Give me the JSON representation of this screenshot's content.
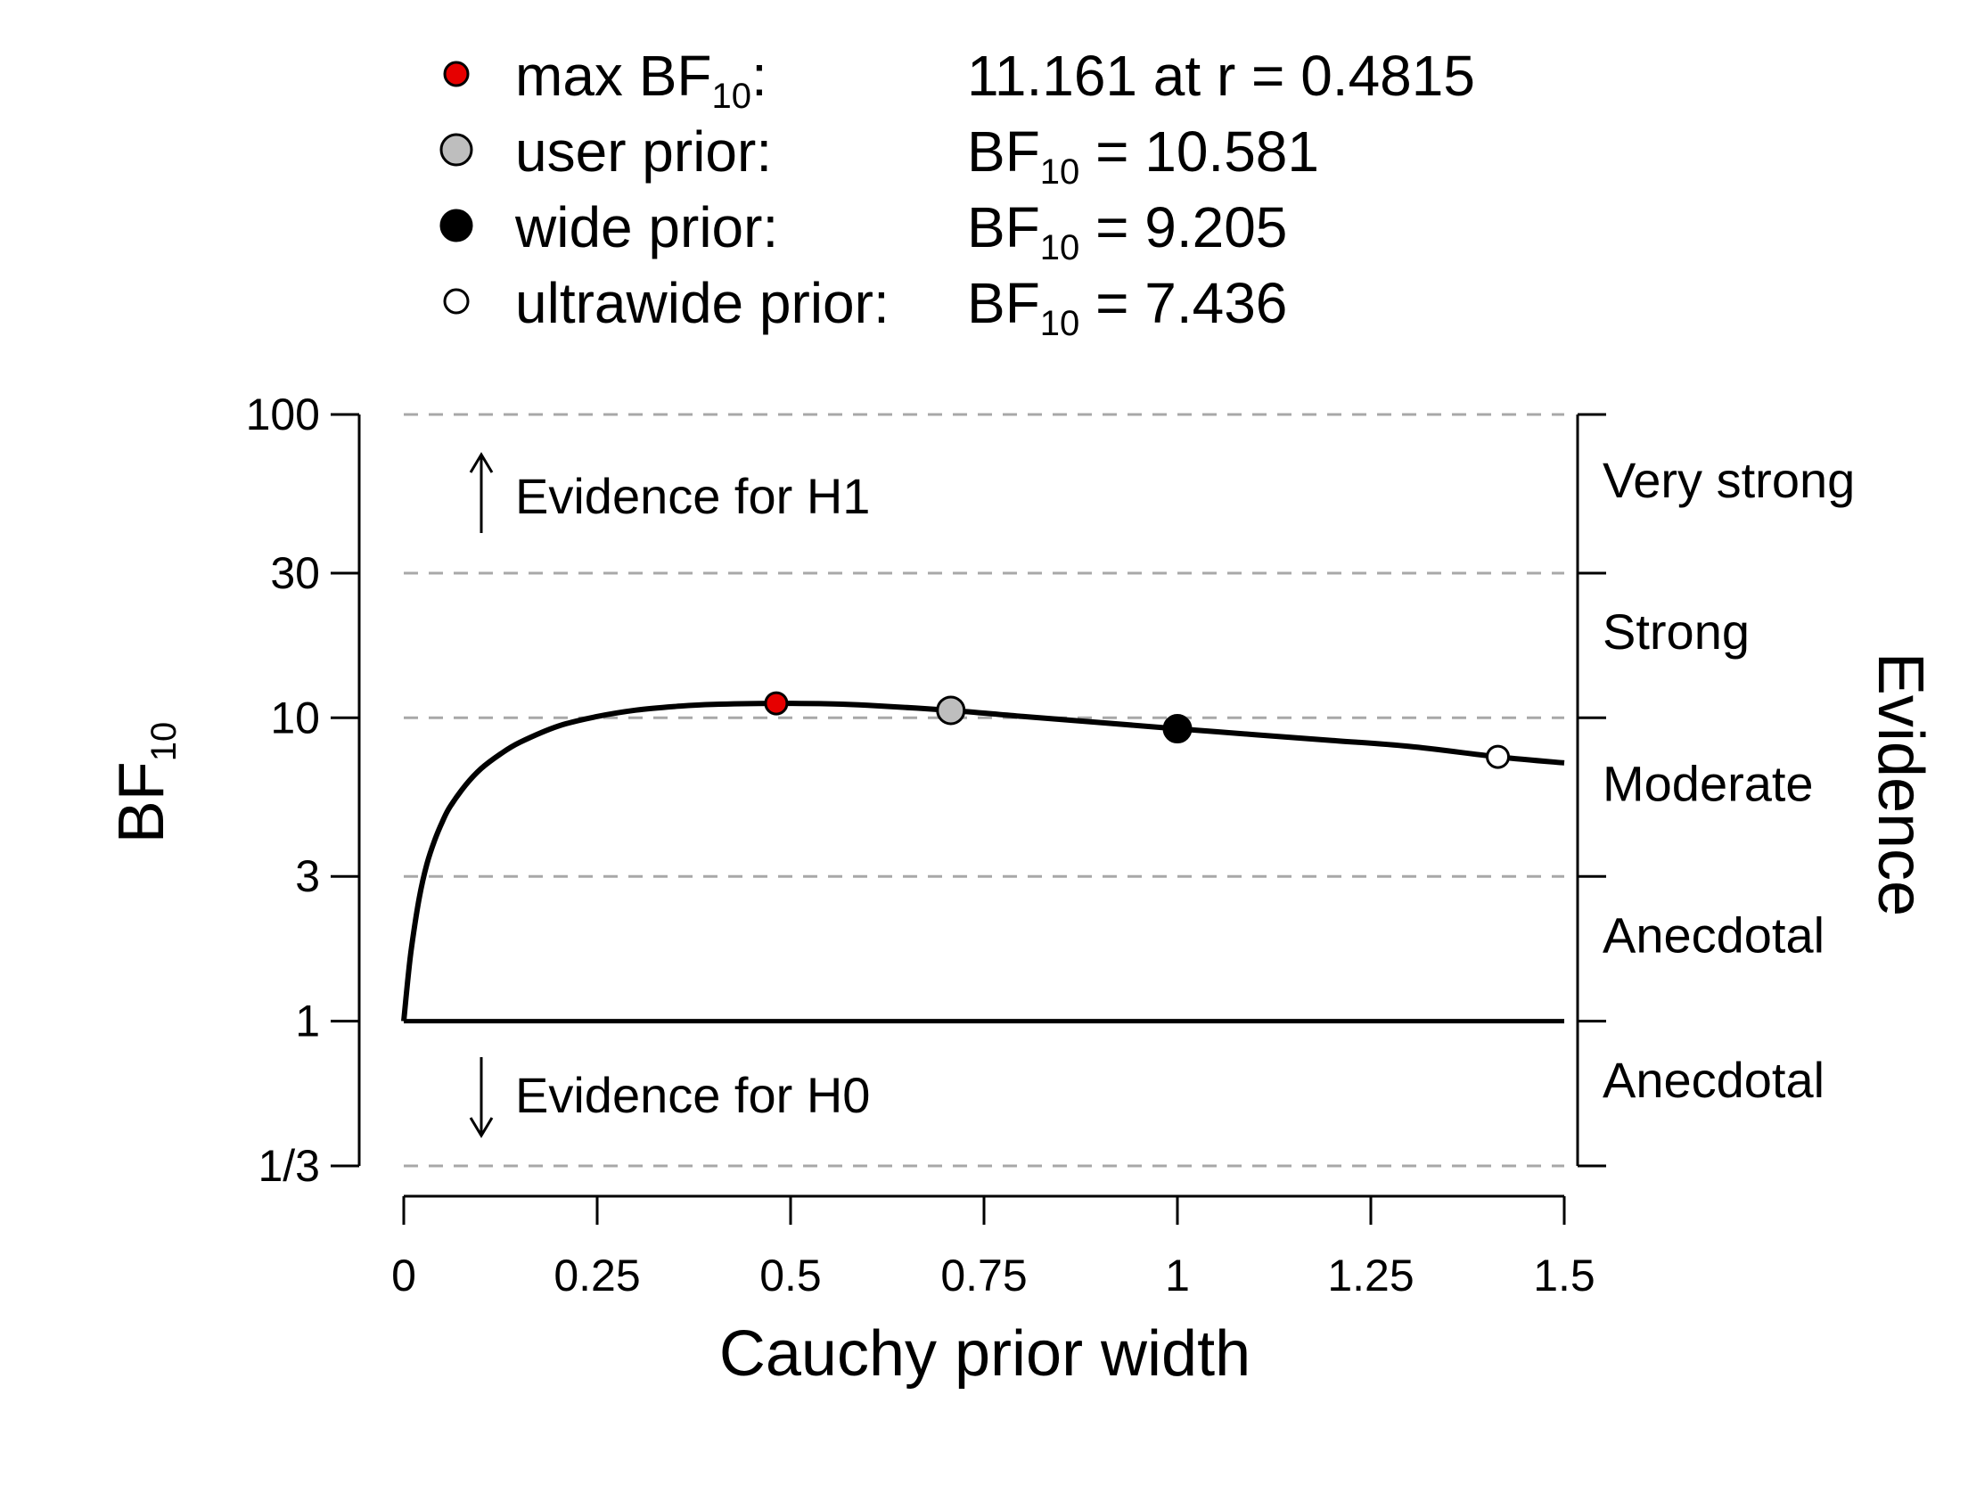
{
  "chart_data": {
    "type": "line",
    "title": "",
    "xlabel": "Cauchy prior width",
    "ylabel_main": "BF",
    "ylabel_sub": "10",
    "right_axis_title": "Evidence",
    "x_ticks": [
      {
        "value": 0,
        "label": "0"
      },
      {
        "value": 0.25,
        "label": "0.25"
      },
      {
        "value": 0.5,
        "label": "0.5"
      },
      {
        "value": 0.75,
        "label": "0.75"
      },
      {
        "value": 1,
        "label": "1"
      },
      {
        "value": 1.25,
        "label": "1.25"
      },
      {
        "value": 1.5,
        "label": "1.5"
      }
    ],
    "y_ticks": [
      {
        "value": 0.3333,
        "label": "1/3"
      },
      {
        "value": 1,
        "label": "1"
      },
      {
        "value": 3,
        "label": "3"
      },
      {
        "value": 10,
        "label": "10"
      },
      {
        "value": 30,
        "label": "30"
      },
      {
        "value": 100,
        "label": "100"
      }
    ],
    "y_scale": "log",
    "xlim": [
      0,
      1.5
    ],
    "ylim": [
      0.3333,
      100
    ],
    "evidence_categories": [
      {
        "label": "Very strong",
        "lo": 30,
        "hi": 100
      },
      {
        "label": "Strong",
        "lo": 10,
        "hi": 30
      },
      {
        "label": "Moderate",
        "lo": 3,
        "hi": 10
      },
      {
        "label": "Anecdotal",
        "lo": 1,
        "hi": 3
      },
      {
        "label": "Anecdotal",
        "lo": 0.3333,
        "hi": 1
      }
    ],
    "annotations": {
      "h1": "Evidence for H1",
      "h0": "Evidence for H0"
    },
    "curve": {
      "x": [
        0,
        0.005,
        0.01,
        0.02,
        0.03,
        0.04,
        0.05,
        0.06,
        0.08,
        0.1,
        0.125,
        0.15,
        0.2,
        0.25,
        0.3,
        0.35,
        0.4,
        0.4815,
        0.55,
        0.6,
        0.7071,
        0.8,
        0.9,
        1.0,
        1.1,
        1.2,
        1.3,
        1.4142,
        1.5
      ],
      "y": [
        1,
        1.35,
        1.75,
        2.55,
        3.3,
        3.95,
        4.55,
        5.1,
        6.0,
        6.8,
        7.6,
        8.3,
        9.4,
        10.1,
        10.6,
        10.9,
        11.08,
        11.161,
        11.12,
        11.0,
        10.581,
        10.1,
        9.65,
        9.205,
        8.8,
        8.42,
        8.05,
        7.436,
        7.1
      ]
    },
    "baseline": {
      "y": 1,
      "x_from": 0,
      "x_to": 1.5
    },
    "points": [
      {
        "key": "max",
        "x": 0.4815,
        "y": 11.161,
        "fill": "#e60000",
        "size": "small"
      },
      {
        "key": "user",
        "x": 0.7071,
        "y": 10.581,
        "fill": "#bebebe",
        "size": "large"
      },
      {
        "key": "wide",
        "x": 1.0,
        "y": 9.205,
        "fill": "#000000",
        "size": "large"
      },
      {
        "key": "ultrawide",
        "x": 1.4142,
        "y": 7.436,
        "fill": "#ffffff",
        "size": "small"
      }
    ],
    "legend": [
      {
        "key": "max",
        "label_main": "max BF",
        "label_sub": "10",
        "label_tail": ":",
        "value_text": "11.161 at r = 0.4815",
        "value_main": "",
        "value_sub": "",
        "fill": "#e60000",
        "size": "small"
      },
      {
        "key": "user",
        "label_main": "user prior:",
        "label_sub": "",
        "label_tail": "",
        "value_text": "",
        "value_main": "BF",
        "value_sub": "10",
        "value_tail": " = 10.581",
        "fill": "#bebebe",
        "size": "large"
      },
      {
        "key": "wide",
        "label_main": "wide prior:",
        "label_sub": "",
        "label_tail": "",
        "value_text": "",
        "value_main": "BF",
        "value_sub": "10",
        "value_tail": " = 9.205",
        "fill": "#000000",
        "size": "large"
      },
      {
        "key": "ultrawide",
        "label_main": "ultrawide prior:",
        "label_sub": "",
        "label_tail": "",
        "value_text": "",
        "value_main": "BF",
        "value_sub": "10",
        "value_tail": " = 7.436",
        "fill": "#ffffff",
        "size": "small"
      }
    ],
    "grid_color": "#a8a8a8",
    "line_color": "#000000"
  }
}
